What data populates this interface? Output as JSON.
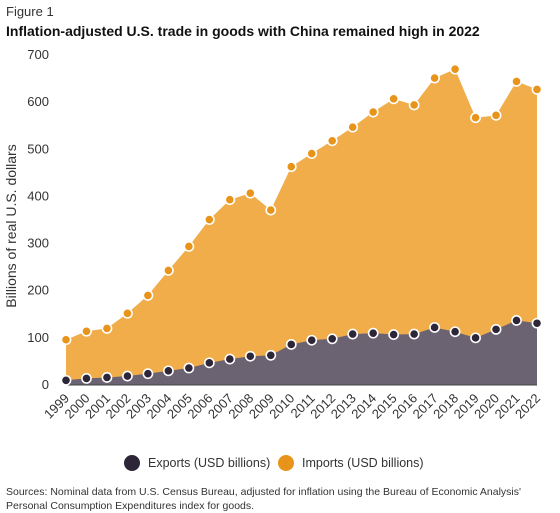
{
  "figure_label": "Figure 1",
  "title": "Inflation-adjusted U.S. trade in goods with China remained high in 2022",
  "source": "Sources: Nominal data from U.S. Census Bureau, adjusted for inflation using the Bureau of Economic Analysis' Personal Consumption Expenditures index for goods.",
  "colors": {
    "exports": "#6b6272",
    "imports": "#f0ad4a",
    "exports_dot": "#2d2538",
    "imports_dot": "#e8941a"
  },
  "chart_data": {
    "type": "area",
    "ylabel": "Billions of real U.S. dollars",
    "xlabel": "",
    "ylim": [
      0,
      700
    ],
    "yticks": [
      "0",
      "100",
      "200",
      "300",
      "400",
      "500",
      "600",
      "700"
    ],
    "x": [
      "1999",
      "2000",
      "2001",
      "2002",
      "2003",
      "2004",
      "2005",
      "2006",
      "2007",
      "2008",
      "2009",
      "2010",
      "2011",
      "2012",
      "2013",
      "2014",
      "2015",
      "2016",
      "2017",
      "2018",
      "2019",
      "2020",
      "2021",
      "2022"
    ],
    "series": [
      {
        "name": "Exports (USD billions)",
        "values": [
          10,
          14,
          16,
          19,
          24,
          30,
          36,
          47,
          55,
          61,
          63,
          86,
          95,
          98,
          108,
          110,
          107,
          108,
          122,
          113,
          100,
          118,
          137,
          131
        ]
      },
      {
        "name": "Imports (USD billions)",
        "values": [
          96,
          114,
          120,
          152,
          190,
          243,
          294,
          351,
          393,
          407,
          371,
          463,
          491,
          518,
          547,
          579,
          607,
          594,
          651,
          670,
          567,
          572,
          644,
          627
        ]
      }
    ],
    "grid": false,
    "legend": "bottom-center"
  }
}
